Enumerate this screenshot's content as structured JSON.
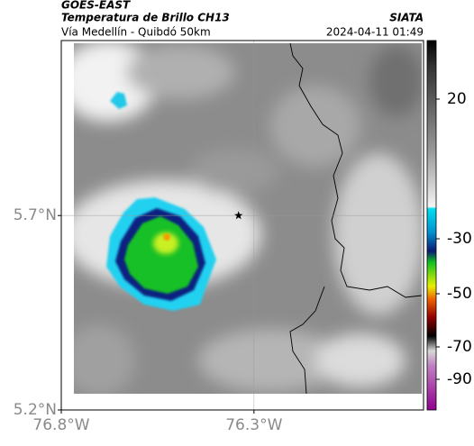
{
  "header": {
    "source": "GOES-EAST",
    "product": "Temperatura de Brillo CH13",
    "agency": "SIATA",
    "route": "Vía Medellín - Quibdó 50km",
    "datetime": "2024-04-11 01:49"
  },
  "map": {
    "xlim": [
      -76.8,
      -75.86
    ],
    "ylim": [
      5.2,
      6.15
    ],
    "xticks": [
      {
        "value": -76.8,
        "label": "76.8°W"
      },
      {
        "value": -76.3,
        "label": "76.3°W"
      }
    ],
    "yticks": [
      {
        "value": 5.2,
        "label": "5.2°N"
      },
      {
        "value": 5.7,
        "label": "5.7°N"
      }
    ],
    "marker": {
      "lon": -76.34,
      "lat": 5.7
    }
  },
  "colorbar": {
    "ticks": [
      20,
      -30,
      -50,
      -70,
      -90
    ]
  }
}
